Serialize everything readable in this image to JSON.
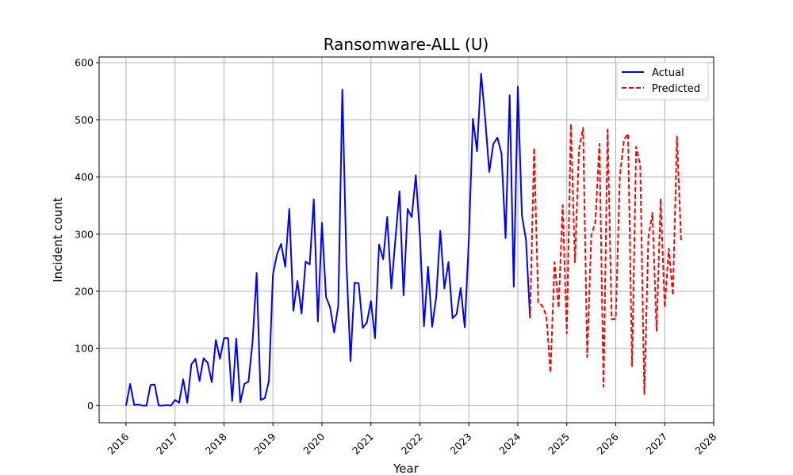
{
  "chart_data": {
    "type": "line",
    "title": "Ransomware-ALL (U)",
    "xlabel": "Year",
    "ylabel": "Incident count",
    "xlim": [
      2015.45,
      2028.0
    ],
    "ylim": [
      -30,
      610
    ],
    "x_ticks": [
      "2016",
      "2017",
      "2018",
      "2019",
      "2020",
      "2021",
      "2022",
      "2023",
      "2024",
      "2025",
      "2026",
      "2027",
      "2028"
    ],
    "y_ticks": [
      "0",
      "100",
      "200",
      "300",
      "400",
      "500",
      "600"
    ],
    "grid": true,
    "legend_position": "top-right",
    "series": [
      {
        "name": "Actual",
        "color": "#0000ff",
        "style": "solid",
        "points": [
          [
            "2016-01",
            0
          ],
          [
            "2016-02",
            38
          ],
          [
            "2016-03",
            1
          ],
          [
            "2016-04",
            2
          ],
          [
            "2016-05",
            0
          ],
          [
            "2016-06",
            0
          ],
          [
            "2016-07",
            36
          ],
          [
            "2016-08",
            37
          ],
          [
            "2016-09",
            0
          ],
          [
            "2016-10",
            0
          ],
          [
            "2016-11",
            1
          ],
          [
            "2016-12",
            0
          ],
          [
            "2017-01",
            10
          ],
          [
            "2017-02",
            5
          ],
          [
            "2017-03",
            46
          ],
          [
            "2017-04",
            5
          ],
          [
            "2017-05",
            72
          ],
          [
            "2017-06",
            82
          ],
          [
            "2017-07",
            43
          ],
          [
            "2017-08",
            83
          ],
          [
            "2017-09",
            75
          ],
          [
            "2017-10",
            41
          ],
          [
            "2017-11",
            115
          ],
          [
            "2017-12",
            82
          ],
          [
            "2018-01",
            118
          ],
          [
            "2018-02",
            118
          ],
          [
            "2018-03",
            8
          ],
          [
            "2018-04",
            117
          ],
          [
            "2018-05",
            6
          ],
          [
            "2018-06",
            38
          ],
          [
            "2018-07",
            42
          ],
          [
            "2018-08",
            112
          ],
          [
            "2018-09",
            232
          ],
          [
            "2018-10",
            10
          ],
          [
            "2018-11",
            13
          ],
          [
            "2018-12",
            43
          ],
          [
            "2019-01",
            230
          ],
          [
            "2019-02",
            265
          ],
          [
            "2019-03",
            283
          ],
          [
            "2019-04",
            243
          ],
          [
            "2019-05",
            344
          ],
          [
            "2019-06",
            166
          ],
          [
            "2019-07",
            218
          ],
          [
            "2019-08",
            161
          ],
          [
            "2019-09",
            252
          ],
          [
            "2019-10",
            247
          ],
          [
            "2019-11",
            361
          ],
          [
            "2019-12",
            147
          ],
          [
            "2020-01",
            320
          ],
          [
            "2020-02",
            190
          ],
          [
            "2020-03",
            172
          ],
          [
            "2020-04",
            128
          ],
          [
            "2020-05",
            175
          ],
          [
            "2020-06",
            553
          ],
          [
            "2020-07",
            250
          ],
          [
            "2020-08",
            78
          ],
          [
            "2020-09",
            215
          ],
          [
            "2020-10",
            214
          ],
          [
            "2020-11",
            136
          ],
          [
            "2020-12",
            145
          ],
          [
            "2021-01",
            183
          ],
          [
            "2021-02",
            118
          ],
          [
            "2021-03",
            282
          ],
          [
            "2021-04",
            256
          ],
          [
            "2021-05",
            330
          ],
          [
            "2021-06",
            205
          ],
          [
            "2021-07",
            291
          ],
          [
            "2021-08",
            375
          ],
          [
            "2021-09",
            193
          ],
          [
            "2021-10",
            344
          ],
          [
            "2021-11",
            330
          ],
          [
            "2021-12",
            403
          ],
          [
            "2022-01",
            299
          ],
          [
            "2022-02",
            139
          ],
          [
            "2022-03",
            243
          ],
          [
            "2022-04",
            138
          ],
          [
            "2022-05",
            190
          ],
          [
            "2022-06",
            306
          ],
          [
            "2022-07",
            205
          ],
          [
            "2022-08",
            251
          ],
          [
            "2022-09",
            153
          ],
          [
            "2022-10",
            160
          ],
          [
            "2022-11",
            206
          ],
          [
            "2022-12",
            137
          ],
          [
            "2023-01",
            292
          ],
          [
            "2023-02",
            502
          ],
          [
            "2023-03",
            445
          ],
          [
            "2023-04",
            581
          ],
          [
            "2023-05",
            502
          ],
          [
            "2023-06",
            409
          ],
          [
            "2023-07",
            458
          ],
          [
            "2023-08",
            469
          ],
          [
            "2023-09",
            441
          ],
          [
            "2023-10",
            293
          ],
          [
            "2023-11",
            543
          ],
          [
            "2023-12",
            208
          ],
          [
            "2024-01",
            558
          ],
          [
            "2024-02",
            333
          ],
          [
            "2024-03",
            290
          ],
          [
            "2024-04",
            153
          ]
        ]
      },
      {
        "name": "Predicted",
        "color": "#ff0000",
        "style": "dashed",
        "points": [
          [
            "2024-04",
            153
          ],
          [
            "2024-05",
            451
          ],
          [
            "2024-06",
            180
          ],
          [
            "2024-07",
            175
          ],
          [
            "2024-08",
            157
          ],
          [
            "2024-09",
            58
          ],
          [
            "2024-10",
            251
          ],
          [
            "2024-11",
            171
          ],
          [
            "2024-12",
            351
          ],
          [
            "2025-01",
            126
          ],
          [
            "2025-02",
            493
          ],
          [
            "2025-03",
            251
          ],
          [
            "2025-04",
            449
          ],
          [
            "2025-05",
            486
          ],
          [
            "2025-06",
            85
          ],
          [
            "2025-07",
            298
          ],
          [
            "2025-08",
            321
          ],
          [
            "2025-09",
            458
          ],
          [
            "2025-10",
            33
          ],
          [
            "2025-11",
            483
          ],
          [
            "2025-12",
            151
          ],
          [
            "2026-01",
            152
          ],
          [
            "2026-02",
            401
          ],
          [
            "2026-03",
            465
          ],
          [
            "2026-04",
            476
          ],
          [
            "2026-05",
            69
          ],
          [
            "2026-06",
            453
          ],
          [
            "2026-07",
            420
          ],
          [
            "2026-08",
            20
          ],
          [
            "2026-09",
            295
          ],
          [
            "2026-10",
            337
          ],
          [
            "2026-11",
            131
          ],
          [
            "2026-12",
            362
          ],
          [
            "2027-01",
            172
          ],
          [
            "2027-02",
            275
          ],
          [
            "2027-03",
            193
          ],
          [
            "2027-04",
            471
          ],
          [
            "2027-05",
            290
          ]
        ]
      }
    ]
  }
}
